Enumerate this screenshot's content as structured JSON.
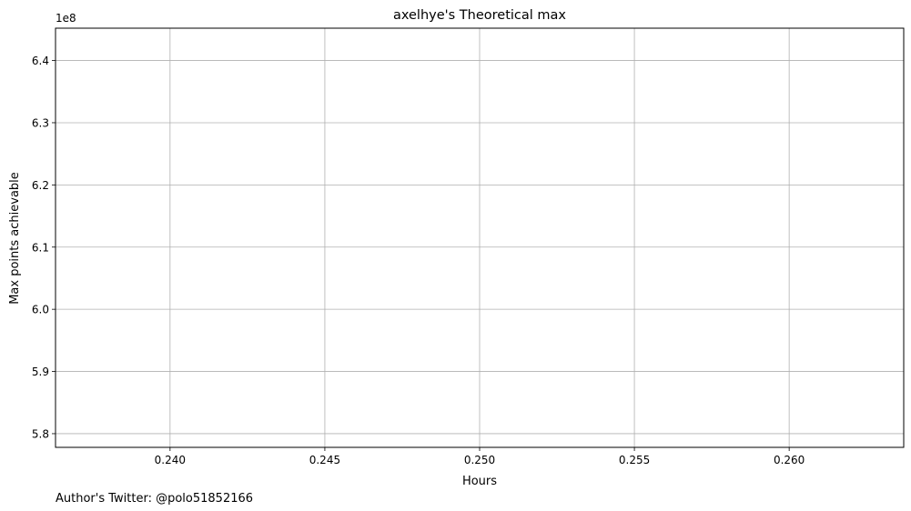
{
  "chart_data": {
    "type": "line",
    "title": "axelhye's Theoretical max",
    "xlabel": "Hours",
    "ylabel": "Max points achievable",
    "y_offset_label": "1e8",
    "x_ticks": [
      0.24,
      0.245,
      0.25,
      0.255,
      0.26
    ],
    "x_tick_labels": [
      "0.240",
      "0.245",
      "0.250",
      "0.255",
      "0.260"
    ],
    "y_ticks": [
      5.8,
      5.9,
      6.0,
      6.1,
      6.2,
      6.3,
      6.4
    ],
    "y_tick_labels": [
      "5.8",
      "5.9",
      "6.0",
      "6.1",
      "6.2",
      "6.3",
      "6.4"
    ],
    "xlim": [
      0.2363,
      0.2637
    ],
    "ylim": [
      5.778,
      6.452
    ],
    "grid": true,
    "series": []
  },
  "footer": {
    "note": "Author's Twitter: @polo51852166"
  }
}
